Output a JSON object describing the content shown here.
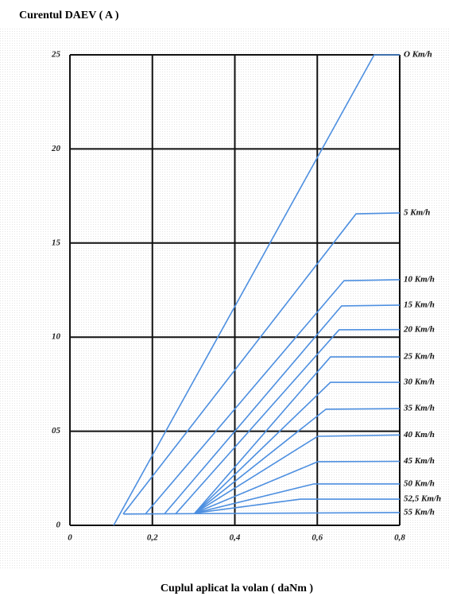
{
  "chart_data": {
    "type": "line",
    "title": "Curentul DAEV ( A )",
    "x_label": "Cuplul aplicat la volan ( daNm )",
    "color": "#4d8fe0",
    "xlim": [
      0,
      0.8
    ],
    "ylim": [
      0,
      25
    ],
    "xticks": [
      0,
      {
        "value": 0.2,
        "label": "0,2"
      },
      {
        "value": 0.4,
        "label": "0,4"
      },
      {
        "value": 0.6,
        "label": "0,6"
      },
      {
        "value": 0.8,
        "label": "0,8"
      }
    ],
    "yticks": [
      0,
      {
        "value": 5,
        "label": "05"
      },
      10,
      15,
      20,
      25
    ],
    "grid": true,
    "series": [
      {
        "name": "O Km/h",
        "x": [
          0.106,
          0.738,
          0.8
        ],
        "values": [
          0,
          25,
          25
        ]
      },
      {
        "name": "5 Km/h",
        "x": [
          0.129,
          0.694,
          0.8
        ],
        "values": [
          0.6,
          16.55,
          16.6
        ]
      },
      {
        "name": "10 Km/h",
        "x": [
          0.183,
          0.665,
          0.8
        ],
        "values": [
          0.6,
          13.0,
          13.05
        ]
      },
      {
        "name": "15 Km/h",
        "x": [
          0.229,
          0.659,
          0.8
        ],
        "values": [
          0.6,
          11.66,
          11.7
        ]
      },
      {
        "name": "20 Km/h",
        "x": [
          0.256,
          0.653,
          0.8
        ],
        "values": [
          0.6,
          10.39,
          10.4
        ]
      },
      {
        "name": "25 Km/h",
        "x": [
          0.303,
          0.632,
          0.8
        ],
        "values": [
          0.65,
          8.95,
          8.95
        ]
      },
      {
        "name": "30 Km/h",
        "x": [
          0.303,
          0.632,
          0.8
        ],
        "values": [
          0.65,
          7.6,
          7.6
        ]
      },
      {
        "name": "35 Km/h",
        "x": [
          0.303,
          0.621,
          0.8
        ],
        "values": [
          0.65,
          6.17,
          6.2
        ]
      },
      {
        "name": "40 Km/h",
        "x": [
          0.303,
          0.601,
          0.8
        ],
        "values": [
          0.65,
          4.73,
          4.8
        ]
      },
      {
        "name": "45 Km/h",
        "x": [
          0.303,
          0.601,
          0.8
        ],
        "values": [
          0.65,
          3.38,
          3.4
        ]
      },
      {
        "name": "50 Km/h",
        "x": [
          0.303,
          0.592,
          0.8
        ],
        "values": [
          0.65,
          2.2,
          2.2
        ]
      },
      {
        "name": "52,5 Km/h",
        "x": [
          0.303,
          0.559,
          0.8
        ],
        "values": [
          0.65,
          1.39,
          1.39
        ]
      },
      {
        "name": "55 Km/h",
        "x": [
          0.13,
          0.8
        ],
        "values": [
          0.6,
          0.68
        ]
      }
    ]
  }
}
